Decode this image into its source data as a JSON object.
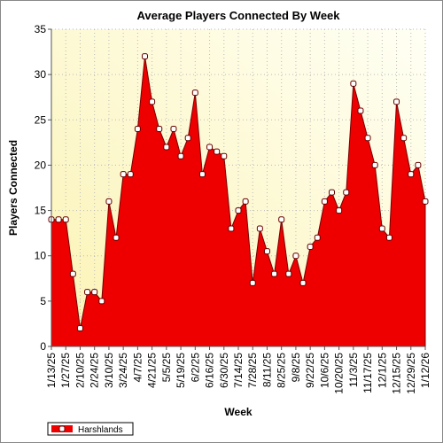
{
  "chart_data": {
    "type": "area",
    "title": "Average Players Connected By Week",
    "x_label": "Week",
    "y_label": "Players Connected",
    "categories": [
      "1/13/25",
      null,
      "1/27/25",
      null,
      "2/10/25",
      null,
      "2/24/25",
      null,
      "3/10/25",
      null,
      "3/24/25",
      null,
      "4/7/25",
      null,
      "4/21/25",
      null,
      "5/5/25",
      null,
      "5/19/25",
      null,
      "6/2/25",
      null,
      "6/16/25",
      null,
      "6/30/25",
      null,
      "7/14/25",
      null,
      "7/28/25",
      null,
      "8/11/25",
      null,
      "8/25/25",
      null,
      "9/8/25",
      null,
      "9/22/25",
      null,
      "10/6/25",
      null,
      "10/20/25",
      null,
      "11/3/25",
      null,
      "11/17/25",
      null,
      "12/1/25",
      null,
      "12/15/25",
      null,
      "12/29/25",
      null,
      "1/12/26"
    ],
    "series": [
      {
        "name": "Harshlands",
        "color": "#ee0000",
        "values": [
          14,
          14,
          14,
          8,
          2,
          6,
          6,
          5,
          16,
          12,
          19,
          19,
          24,
          32,
          27,
          24,
          22,
          24,
          21,
          23,
          28,
          19,
          22,
          21.5,
          21,
          13,
          15,
          16,
          7,
          13,
          10.5,
          8,
          14,
          8,
          10,
          7,
          11,
          12,
          16,
          17,
          15,
          17,
          29,
          26,
          23,
          20,
          13,
          12,
          27,
          23,
          19,
          20,
          16
        ]
      }
    ],
    "ylim": [
      0,
      35
    ],
    "yticks": [
      0,
      5,
      10,
      15,
      20,
      25,
      30,
      35
    ],
    "grid": true,
    "legend": "bottom-left"
  }
}
